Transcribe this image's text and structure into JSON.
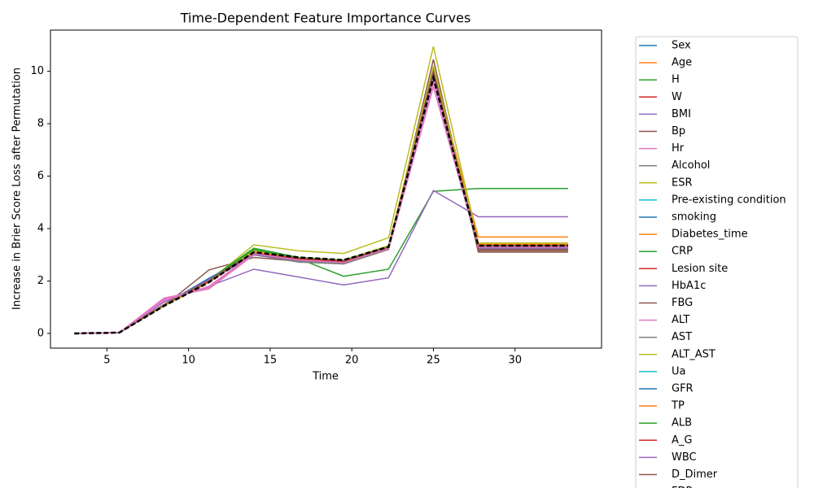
{
  "chart_data": {
    "type": "line",
    "title": "Time-Dependent Feature Importance Curves",
    "x_label": "Time",
    "y_label": "Increase in Brier Score Loss after Permutation",
    "x": [
      3,
      5.75,
      8.5,
      11.25,
      14,
      16.75,
      19.5,
      22.25,
      25,
      27.75,
      30.5,
      33.25
    ],
    "xlim": [
      1.54,
      35.3
    ],
    "xticks": [
      5,
      10,
      15,
      20,
      25,
      30
    ],
    "ylim": [
      -0.56,
      11.57
    ],
    "yticks": [
      0,
      2,
      4,
      6,
      8,
      10
    ],
    "series": [
      {
        "name": "Sex",
        "color": "#1f77b4",
        "values": [
          0,
          0.03,
          1.1,
          2.1,
          3.0,
          2.75,
          2.7,
          3.25,
          9.9,
          3.25,
          3.25,
          3.25
        ]
      },
      {
        "name": "Age",
        "color": "#ff7f0e",
        "values": [
          0,
          0.03,
          1.05,
          1.95,
          3.1,
          2.85,
          2.75,
          3.3,
          10.05,
          3.68,
          3.68,
          3.68
        ]
      },
      {
        "name": "H",
        "color": "#2ca02c",
        "values": [
          0,
          0.03,
          1.1,
          2.0,
          3.2,
          2.85,
          2.18,
          2.45,
          5.42,
          5.53,
          5.53,
          5.53
        ]
      },
      {
        "name": "W",
        "color": "#d62728",
        "values": [
          0,
          0.03,
          1.1,
          2.05,
          3.05,
          2.8,
          2.7,
          3.25,
          9.85,
          3.3,
          3.3,
          3.3
        ]
      },
      {
        "name": "BMI",
        "color": "#9467bd",
        "values": [
          0,
          0.03,
          1.2,
          1.8,
          2.45,
          2.15,
          1.85,
          2.12,
          5.45,
          4.45,
          4.45,
          4.45
        ]
      },
      {
        "name": "Bp",
        "color": "#8c564b",
        "values": [
          0,
          0.03,
          1.05,
          2.42,
          2.9,
          2.75,
          2.65,
          3.2,
          10.45,
          3.1,
          3.1,
          3.1
        ]
      },
      {
        "name": "Hr",
        "color": "#e377c2",
        "values": [
          0,
          0.03,
          1.35,
          1.7,
          3.0,
          2.8,
          2.7,
          3.2,
          9.4,
          3.3,
          3.3,
          3.3
        ]
      },
      {
        "name": "Alcohol",
        "color": "#7f7f7f",
        "values": [
          0,
          0.03,
          1.1,
          2.0,
          3.0,
          2.75,
          2.68,
          3.25,
          9.8,
          3.2,
          3.2,
          3.2
        ]
      },
      {
        "name": "ESR",
        "color": "#bcbd22",
        "values": [
          0,
          0.03,
          1.05,
          2.0,
          3.38,
          3.15,
          3.05,
          3.65,
          10.95,
          3.45,
          3.45,
          3.45
        ]
      },
      {
        "name": "Pre-existing condition",
        "color": "#17becf",
        "values": [
          0,
          0.03,
          1.1,
          2.05,
          3.05,
          2.8,
          2.72,
          3.28,
          9.85,
          3.3,
          3.3,
          3.3
        ]
      },
      {
        "name": "smoking",
        "color": "#1f77b4",
        "values": [
          0,
          0.03,
          1.1,
          2.1,
          3.05,
          2.8,
          2.7,
          3.25,
          9.9,
          3.28,
          3.28,
          3.28
        ]
      },
      {
        "name": "Diabetes_time",
        "color": "#ff7f0e",
        "values": [
          0,
          0.03,
          1.1,
          1.95,
          3.1,
          2.85,
          2.75,
          3.3,
          10.0,
          3.4,
          3.4,
          3.4
        ]
      },
      {
        "name": "CRP",
        "color": "#2ca02c",
        "values": [
          0,
          0.03,
          1.1,
          2.05,
          3.25,
          2.9,
          2.8,
          3.3,
          9.9,
          3.35,
          3.35,
          3.35
        ]
      },
      {
        "name": "Lesion site",
        "color": "#d62728",
        "values": [
          0,
          0.03,
          1.1,
          2.05,
          3.05,
          2.85,
          2.75,
          3.28,
          9.9,
          3.35,
          3.35,
          3.35
        ]
      },
      {
        "name": "HbA1c",
        "color": "#9467bd",
        "values": [
          0,
          0.03,
          1.1,
          2.05,
          3.0,
          2.8,
          2.7,
          3.25,
          9.9,
          3.25,
          3.25,
          3.25
        ]
      },
      {
        "name": "FBG",
        "color": "#8c564b",
        "values": [
          0,
          0.03,
          1.1,
          2.0,
          3.05,
          2.8,
          2.7,
          3.25,
          10.1,
          3.15,
          3.15,
          3.15
        ]
      },
      {
        "name": "ALT",
        "color": "#e377c2",
        "values": [
          0,
          0.03,
          1.3,
          1.75,
          3.05,
          2.8,
          2.7,
          3.25,
          9.6,
          3.3,
          3.3,
          3.3
        ]
      },
      {
        "name": "AST",
        "color": "#7f7f7f",
        "values": [
          0,
          0.03,
          1.1,
          2.0,
          3.0,
          2.72,
          2.65,
          3.22,
          9.75,
          3.2,
          3.2,
          3.2
        ]
      },
      {
        "name": "ALT_AST",
        "color": "#bcbd22",
        "values": [
          0,
          0.03,
          1.08,
          2.0,
          3.15,
          2.9,
          2.8,
          3.35,
          10.2,
          3.35,
          3.35,
          3.35
        ]
      },
      {
        "name": "Ua",
        "color": "#17becf",
        "values": [
          0,
          0.03,
          1.1,
          2.05,
          3.05,
          2.82,
          2.72,
          3.28,
          9.85,
          3.3,
          3.3,
          3.3
        ]
      },
      {
        "name": "GFR",
        "color": "#1f77b4",
        "values": [
          0,
          0.03,
          1.1,
          2.1,
          3.05,
          2.8,
          2.72,
          3.27,
          9.9,
          3.32,
          3.32,
          3.32
        ]
      },
      {
        "name": "TP",
        "color": "#ff7f0e",
        "values": [
          0,
          0.03,
          1.1,
          1.95,
          3.1,
          2.85,
          2.75,
          3.3,
          9.95,
          3.38,
          3.38,
          3.38
        ]
      },
      {
        "name": "ALB",
        "color": "#2ca02c",
        "values": [
          0,
          0.03,
          1.1,
          2.05,
          3.2,
          2.88,
          2.78,
          3.3,
          9.9,
          3.35,
          3.35,
          3.35
        ]
      },
      {
        "name": "A_G",
        "color": "#d62728",
        "values": [
          0,
          0.03,
          1.1,
          2.05,
          3.05,
          2.85,
          2.75,
          3.28,
          9.9,
          3.33,
          3.33,
          3.33
        ]
      },
      {
        "name": "WBC",
        "color": "#9467bd",
        "values": [
          0,
          0.03,
          1.1,
          2.05,
          3.0,
          2.8,
          2.7,
          3.25,
          9.9,
          3.25,
          3.25,
          3.25
        ]
      },
      {
        "name": "D_Dimer",
        "color": "#8c564b",
        "values": [
          0,
          0.03,
          1.1,
          2.0,
          3.05,
          2.8,
          2.7,
          3.25,
          10.0,
          3.2,
          3.2,
          3.2
        ]
      },
      {
        "name": "FDP",
        "color": "#e377c2",
        "values": [
          0,
          0.03,
          1.25,
          1.8,
          3.05,
          2.8,
          2.7,
          3.25,
          9.7,
          3.3,
          3.3,
          3.3
        ]
      },
      {
        "color": "#000000",
        "dashed": true,
        "values": [
          0,
          0.03,
          1.05,
          1.95,
          3.1,
          2.9,
          2.8,
          3.3,
          9.75,
          3.35,
          3.35,
          3.35
        ]
      }
    ]
  }
}
